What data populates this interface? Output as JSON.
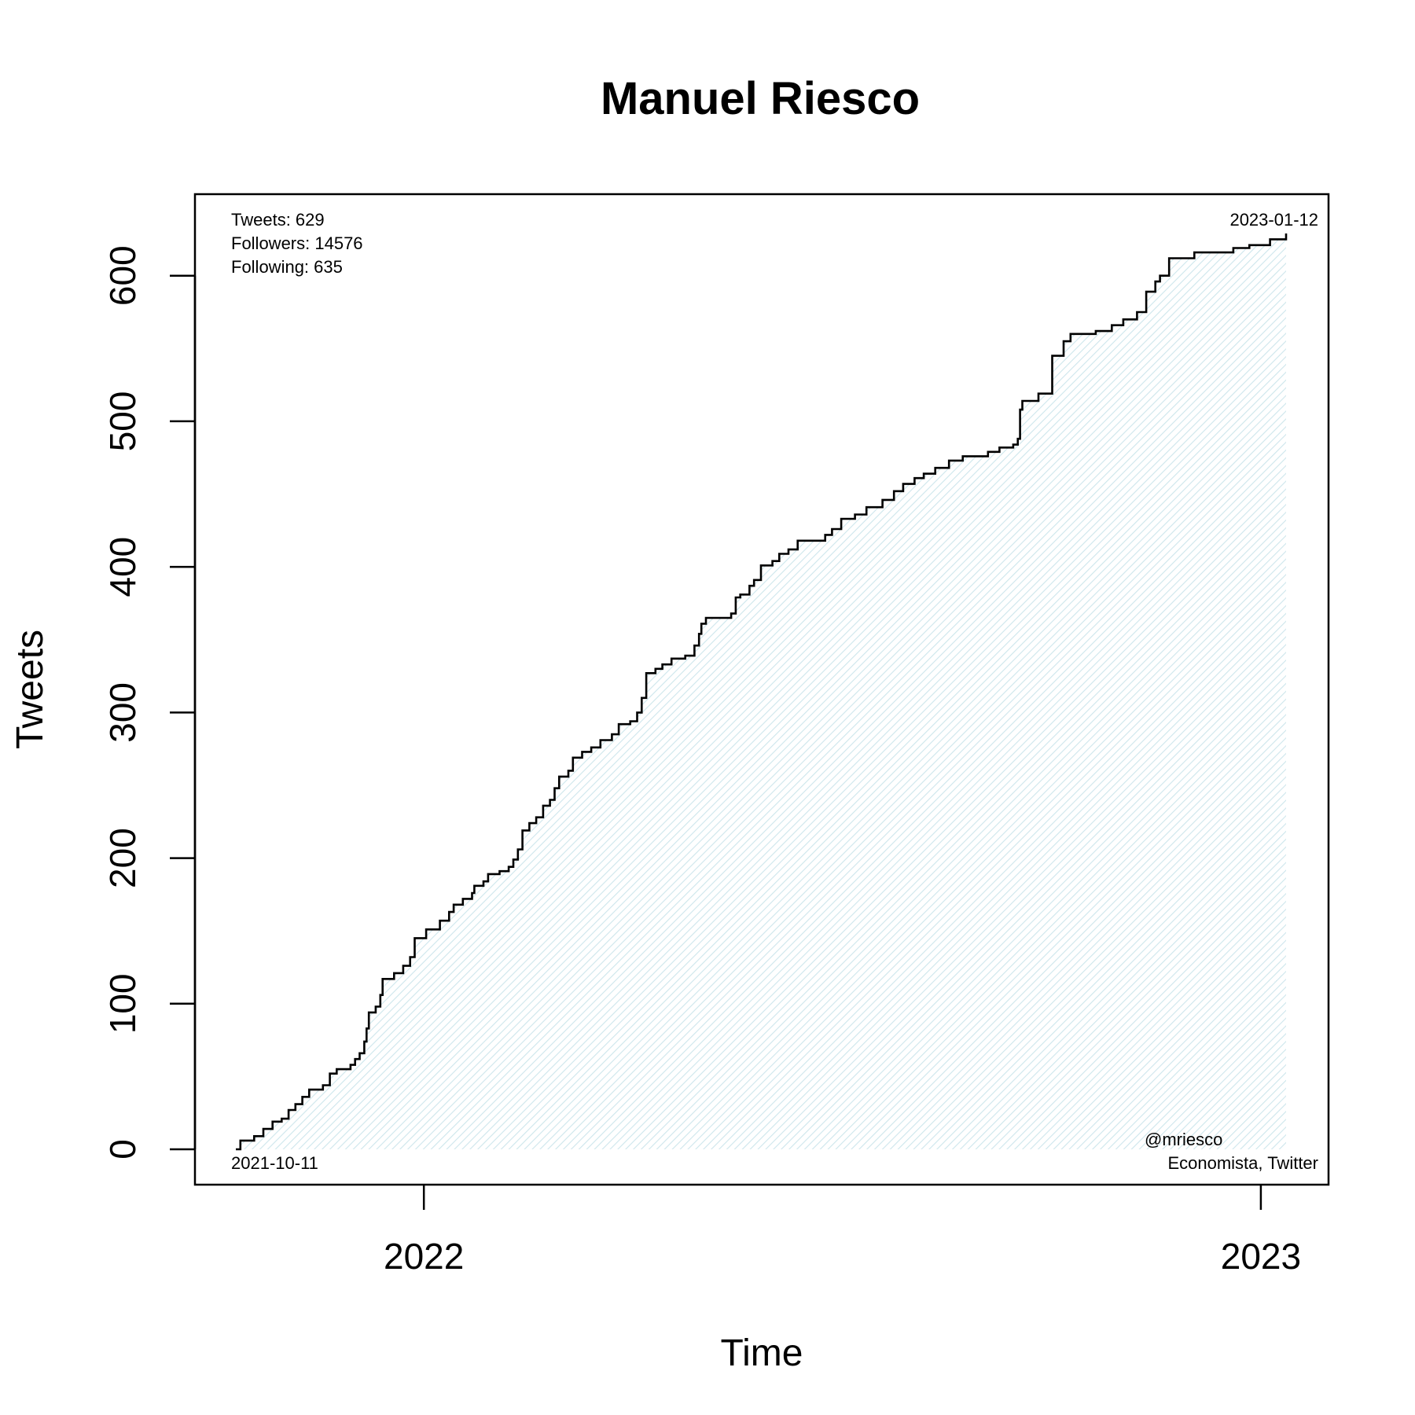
{
  "chart_data": {
    "type": "line",
    "title": "Manuel Riesco",
    "xlabel": "Time",
    "ylabel": "Tweets",
    "ylim": [
      0,
      629
    ],
    "y_ticks": [
      0,
      100,
      200,
      300,
      400,
      500,
      600
    ],
    "x_ticks": [
      {
        "label": "2022",
        "value": "2022-01-01"
      },
      {
        "label": "2023",
        "value": "2023-01-01"
      }
    ],
    "start_date": "2021-10-11",
    "end_date": "2023-01-12",
    "grid": false,
    "fill": "area under cumulative line, light blue hatch",
    "series": [
      {
        "name": "cumulative tweets",
        "points": [
          [
            "2021-10-11",
            0
          ],
          [
            "2021-10-13",
            6
          ],
          [
            "2021-10-19",
            9
          ],
          [
            "2021-10-23",
            14
          ],
          [
            "2021-10-27",
            19
          ],
          [
            "2021-10-31",
            21
          ],
          [
            "2021-11-03",
            27
          ],
          [
            "2021-11-06",
            31
          ],
          [
            "2021-11-09",
            36
          ],
          [
            "2021-11-12",
            41
          ],
          [
            "2021-11-18",
            44
          ],
          [
            "2021-11-21",
            52
          ],
          [
            "2021-11-24",
            55
          ],
          [
            "2021-11-30",
            58
          ],
          [
            "2021-12-02",
            62
          ],
          [
            "2021-12-04",
            66
          ],
          [
            "2021-12-06",
            74
          ],
          [
            "2021-12-07",
            83
          ],
          [
            "2021-12-08",
            94
          ],
          [
            "2021-12-11",
            98
          ],
          [
            "2021-12-13",
            106
          ],
          [
            "2021-12-14",
            117
          ],
          [
            "2021-12-19",
            121
          ],
          [
            "2021-12-23",
            126
          ],
          [
            "2021-12-26",
            132
          ],
          [
            "2021-12-28",
            145
          ],
          [
            "2022-01-02",
            151
          ],
          [
            "2022-01-08",
            157
          ],
          [
            "2022-01-12",
            163
          ],
          [
            "2022-01-14",
            168
          ],
          [
            "2022-01-18",
            172
          ],
          [
            "2022-01-22",
            176
          ],
          [
            "2022-01-23",
            181
          ],
          [
            "2022-01-27",
            184
          ],
          [
            "2022-01-29",
            189
          ],
          [
            "2022-02-03",
            191
          ],
          [
            "2022-02-07",
            194
          ],
          [
            "2022-02-09",
            199
          ],
          [
            "2022-02-11",
            206
          ],
          [
            "2022-02-13",
            219
          ],
          [
            "2022-02-16",
            224
          ],
          [
            "2022-02-19",
            228
          ],
          [
            "2022-02-22",
            236
          ],
          [
            "2022-02-25",
            240
          ],
          [
            "2022-02-27",
            248
          ],
          [
            "2022-03-01",
            256
          ],
          [
            "2022-03-05",
            260
          ],
          [
            "2022-03-07",
            269
          ],
          [
            "2022-03-11",
            273
          ],
          [
            "2022-03-15",
            276
          ],
          [
            "2022-03-19",
            281
          ],
          [
            "2022-03-24",
            285
          ],
          [
            "2022-03-27",
            292
          ],
          [
            "2022-04-01",
            294
          ],
          [
            "2022-04-04",
            300
          ],
          [
            "2022-04-06",
            310
          ],
          [
            "2022-04-08",
            327
          ],
          [
            "2022-04-12",
            330
          ],
          [
            "2022-04-15",
            333
          ],
          [
            "2022-04-19",
            337
          ],
          [
            "2022-04-25",
            339
          ],
          [
            "2022-04-29",
            346
          ],
          [
            "2022-05-01",
            354
          ],
          [
            "2022-05-02",
            361
          ],
          [
            "2022-05-04",
            365
          ],
          [
            "2022-05-15",
            368
          ],
          [
            "2022-05-17",
            379
          ],
          [
            "2022-05-19",
            381
          ],
          [
            "2022-05-23",
            387
          ],
          [
            "2022-05-25",
            391
          ],
          [
            "2022-05-28",
            401
          ],
          [
            "2022-06-02",
            404
          ],
          [
            "2022-06-05",
            409
          ],
          [
            "2022-06-09",
            412
          ],
          [
            "2022-06-13",
            418
          ],
          [
            "2022-06-25",
            422
          ],
          [
            "2022-06-28",
            426
          ],
          [
            "2022-07-02",
            433
          ],
          [
            "2022-07-08",
            436
          ],
          [
            "2022-07-13",
            441
          ],
          [
            "2022-07-20",
            446
          ],
          [
            "2022-07-25",
            452
          ],
          [
            "2022-07-29",
            457
          ],
          [
            "2022-08-03",
            461
          ],
          [
            "2022-08-07",
            464
          ],
          [
            "2022-08-12",
            468
          ],
          [
            "2022-08-18",
            473
          ],
          [
            "2022-08-24",
            476
          ],
          [
            "2022-09-04",
            479
          ],
          [
            "2022-09-09",
            482
          ],
          [
            "2022-09-15",
            484
          ],
          [
            "2022-09-17",
            488
          ],
          [
            "2022-09-18",
            508
          ],
          [
            "2022-09-19",
            514
          ],
          [
            "2022-09-26",
            519
          ],
          [
            "2022-10-02",
            545
          ],
          [
            "2022-10-07",
            555
          ],
          [
            "2022-10-10",
            560
          ],
          [
            "2022-10-21",
            562
          ],
          [
            "2022-10-28",
            566
          ],
          [
            "2022-11-02",
            570
          ],
          [
            "2022-11-08",
            575
          ],
          [
            "2022-11-12",
            589
          ],
          [
            "2022-11-16",
            596
          ],
          [
            "2022-11-18",
            600
          ],
          [
            "2022-11-22",
            612
          ],
          [
            "2022-12-03",
            616
          ],
          [
            "2022-12-20",
            619
          ],
          [
            "2022-12-27",
            621
          ],
          [
            "2023-01-05",
            625
          ],
          [
            "2023-01-12",
            629
          ]
        ]
      }
    ]
  },
  "annotations": {
    "tweets": "Tweets: 629",
    "followers": "Followers: 14576",
    "following": "Following: 635",
    "start_date": "2021-10-11",
    "end_date": "2023-01-12",
    "handle": "@mriesco",
    "bio": "Economista, Twitter"
  },
  "colors": {
    "line": "#000000",
    "fill_hatch": "#cde6ec",
    "frame": "#000000"
  }
}
